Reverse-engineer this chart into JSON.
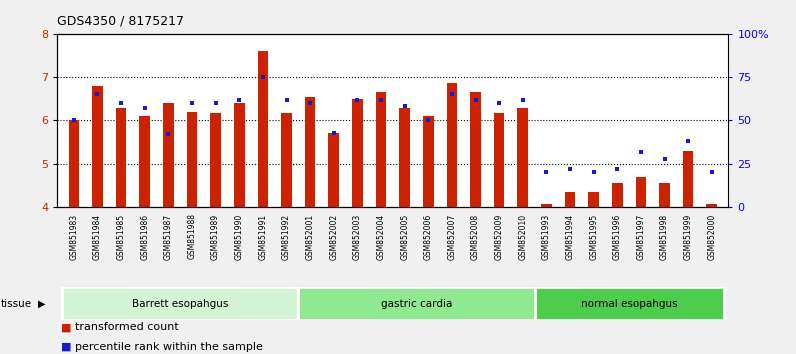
{
  "title": "GDS4350 / 8175217",
  "samples": [
    "GSM851983",
    "GSM851984",
    "GSM851985",
    "GSM851986",
    "GSM851987",
    "GSM851988",
    "GSM851989",
    "GSM851990",
    "GSM851991",
    "GSM851992",
    "GSM852001",
    "GSM852002",
    "GSM852003",
    "GSM852004",
    "GSM852005",
    "GSM852006",
    "GSM852007",
    "GSM852008",
    "GSM852009",
    "GSM852010",
    "GSM851993",
    "GSM851994",
    "GSM851995",
    "GSM851996",
    "GSM851997",
    "GSM851998",
    "GSM851999",
    "GSM852000"
  ],
  "transformed_count": [
    6.0,
    6.8,
    6.28,
    6.1,
    6.4,
    6.2,
    6.18,
    6.4,
    7.6,
    6.18,
    6.55,
    5.7,
    6.5,
    6.65,
    6.28,
    6.1,
    6.85,
    6.65,
    6.18,
    6.28,
    4.08,
    4.35,
    4.35,
    4.55,
    4.7,
    4.55,
    5.3,
    4.08
  ],
  "percentile_rank": [
    50,
    65,
    60,
    57,
    42,
    60,
    60,
    62,
    75,
    62,
    60,
    43,
    62,
    62,
    58,
    50,
    65,
    62,
    60,
    62,
    20,
    22,
    20,
    22,
    32,
    28,
    38,
    20
  ],
  "groups": [
    {
      "label": "Barrett esopahgus",
      "start": 0,
      "end": 10,
      "color": "#d4f5d4"
    },
    {
      "label": "gastric cardia",
      "start": 10,
      "end": 20,
      "color": "#90e890"
    },
    {
      "label": "normal esopahgus",
      "start": 20,
      "end": 28,
      "color": "#4ecc4e"
    }
  ],
  "ylim": [
    4,
    8
  ],
  "yticks_left": [
    4,
    5,
    6,
    7,
    8
  ],
  "yticks_right": [
    0,
    25,
    50,
    75,
    100
  ],
  "ytick_right_labels": [
    "0",
    "25",
    "50",
    "75",
    "100%"
  ],
  "bar_color": "#cc2200",
  "dot_color": "#1a1acc",
  "bar_width": 0.45,
  "bg_color": "#f0f0f0",
  "plot_bg": "#ffffff",
  "xticklabel_bg": "#d8d8d8",
  "tissue_label": "tissue",
  "legend_tc": "transformed count",
  "legend_pr": "percentile rank within the sample"
}
